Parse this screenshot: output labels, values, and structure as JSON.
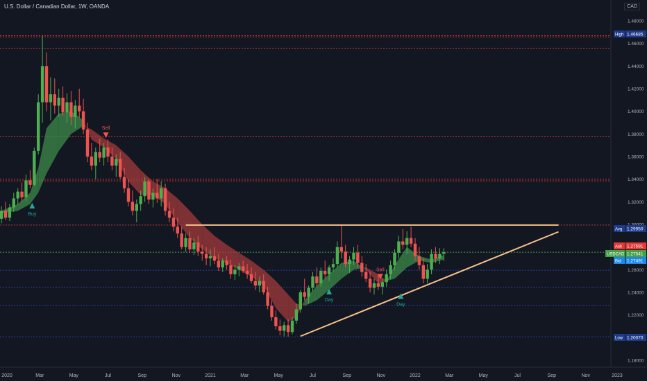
{
  "header": {
    "title": "U.S. Dollar / Canadian Dollar, 1W, OANDA",
    "currency": "CAD"
  },
  "colors": {
    "background": "#131722",
    "up": "#26a69a",
    "up_bright": "#4caf50",
    "down": "#ef5350",
    "cloud_bull": "#3d8b4a",
    "cloud_bear": "#a33b3b",
    "hline_red": "#e53935",
    "hline_blue": "#2c3fb8",
    "trend": "#f7c28a",
    "last_price": "#4caf50"
  },
  "chart_data": {
    "type": "candlestick",
    "title": "U.S. Dollar / Canadian Dollar, 1W, OANDA",
    "y_axis": {
      "range": [
        1.17,
        1.48
      ],
      "ticks": [
        "1.48000",
        "1.46000",
        "1.44000",
        "1.42000",
        "1.40000",
        "1.38000",
        "1.36000",
        "1.34000",
        "1.32000",
        "1.30000",
        "1.28000",
        "1.26000",
        "1.24000",
        "1.22000",
        "1.20000",
        "1.18000"
      ]
    },
    "x_axis": {
      "ticks": [
        "2020",
        "Mar",
        "May",
        "Jul",
        "Sep",
        "Nov",
        "2021",
        "Mar",
        "May",
        "Jul",
        "Sep",
        "Nov",
        "2022",
        "Mar",
        "May",
        "Jul",
        "Sep",
        "Nov",
        "2023"
      ]
    },
    "price_labels": [
      {
        "label": "High",
        "value": "1.46685",
        "bg": "#1e3a8a"
      },
      {
        "label": "Avg",
        "value": "1.29950",
        "bg": "#1e3a8a"
      },
      {
        "label": "Ask",
        "value": "1.27591",
        "bg": "#e53935"
      },
      {
        "label": "USDCAD",
        "value": "1.27541",
        "bg": "#43a047"
      },
      {
        "label": "Bid",
        "value": "1.27491",
        "bg": "#1e88e5"
      },
      {
        "label": "Low",
        "value": "1.20070",
        "bg": "#1e3a8a"
      }
    ],
    "horizontal_lines": [
      {
        "y": 1.4668,
        "color": "red"
      },
      {
        "y": 1.4658,
        "color": "red"
      },
      {
        "y": 1.4555,
        "color": "red"
      },
      {
        "y": 1.3775,
        "color": "red"
      },
      {
        "y": 1.34,
        "color": "red"
      },
      {
        "y": 1.3385,
        "color": "red"
      },
      {
        "y": 1.2995,
        "color": "red"
      },
      {
        "y": 1.2754,
        "color": "green"
      },
      {
        "y": 1.2595,
        "color": "blue"
      },
      {
        "y": 1.2445,
        "color": "blue"
      },
      {
        "y": 1.2285,
        "color": "blue"
      },
      {
        "y": 1.2007,
        "color": "blue"
      }
    ],
    "drawings": {
      "resistance": {
        "from": [
          2020.88,
          1.2995
        ],
        "to": [
          2022.7,
          1.2995
        ]
      },
      "trendline": {
        "from": [
          2021.44,
          1.2012
        ],
        "to": [
          2022.7,
          1.2935
        ]
      }
    },
    "signals": [
      {
        "label": "Buy",
        "type": "buy",
        "x": 2020.13,
        "price": 1.316
      },
      {
        "label": "Sell",
        "type": "sell",
        "x": 2020.49,
        "price": 1.3795
      },
      {
        "label": "Day",
        "type": "buy",
        "x": 2021.58,
        "price": 1.24
      },
      {
        "label": "Sell",
        "type": "sell",
        "x": 2021.83,
        "price": 1.2545
      },
      {
        "label": "Day",
        "type": "buy",
        "x": 2021.93,
        "price": 1.236
      }
    ],
    "candles": [
      [
        2019.9,
        1.305,
        1.312,
        1.298,
        1.302
      ],
      [
        2019.92,
        1.302,
        1.315,
        1.299,
        1.313
      ],
      [
        2019.94,
        1.313,
        1.322,
        1.308,
        1.319
      ],
      [
        2019.96,
        1.319,
        1.322,
        1.302,
        1.305
      ],
      [
        2019.98,
        1.305,
        1.316,
        1.301,
        1.312
      ],
      [
        2020.0,
        1.312,
        1.32,
        1.304,
        1.306
      ],
      [
        2020.02,
        1.306,
        1.318,
        1.303,
        1.315
      ],
      [
        2020.04,
        1.315,
        1.328,
        1.311,
        1.323
      ],
      [
        2020.06,
        1.323,
        1.332,
        1.317,
        1.329
      ],
      [
        2020.08,
        1.329,
        1.337,
        1.32,
        1.324
      ],
      [
        2020.1,
        1.324,
        1.344,
        1.321,
        1.339
      ],
      [
        2020.12,
        1.339,
        1.348,
        1.332,
        1.335
      ],
      [
        2020.14,
        1.335,
        1.368,
        1.334,
        1.365
      ],
      [
        2020.16,
        1.365,
        1.415,
        1.362,
        1.408
      ],
      [
        2020.18,
        1.408,
        1.4668,
        1.39,
        1.44
      ],
      [
        2020.2,
        1.44,
        1.452,
        1.4,
        1.408
      ],
      [
        2020.22,
        1.408,
        1.43,
        1.392,
        1.415
      ],
      [
        2020.24,
        1.415,
        1.429,
        1.398,
        1.405
      ],
      [
        2020.26,
        1.405,
        1.42,
        1.395,
        1.412
      ],
      [
        2020.28,
        1.412,
        1.422,
        1.396,
        1.399
      ],
      [
        2020.3,
        1.399,
        1.416,
        1.39,
        1.408
      ],
      [
        2020.32,
        1.408,
        1.418,
        1.388,
        1.395
      ],
      [
        2020.34,
        1.395,
        1.41,
        1.385,
        1.405
      ],
      [
        2020.36,
        1.405,
        1.42,
        1.394,
        1.4
      ],
      [
        2020.38,
        1.4,
        1.411,
        1.38,
        1.384
      ],
      [
        2020.4,
        1.384,
        1.39,
        1.355,
        1.36
      ],
      [
        2020.42,
        1.36,
        1.372,
        1.348,
        1.352
      ],
      [
        2020.44,
        1.352,
        1.368,
        1.34,
        1.364
      ],
      [
        2020.46,
        1.364,
        1.376,
        1.355,
        1.359
      ],
      [
        2020.48,
        1.359,
        1.372,
        1.352,
        1.368
      ],
      [
        2020.5,
        1.368,
        1.375,
        1.355,
        1.36
      ],
      [
        2020.52,
        1.36,
        1.368,
        1.348,
        1.352
      ],
      [
        2020.54,
        1.352,
        1.362,
        1.342,
        1.358
      ],
      [
        2020.56,
        1.358,
        1.364,
        1.34,
        1.342
      ],
      [
        2020.58,
        1.342,
        1.35,
        1.328,
        1.332
      ],
      [
        2020.6,
        1.332,
        1.34,
        1.316,
        1.32
      ],
      [
        2020.62,
        1.32,
        1.33,
        1.308,
        1.312
      ],
      [
        2020.64,
        1.312,
        1.322,
        1.302,
        1.318
      ],
      [
        2020.66,
        1.318,
        1.33,
        1.312,
        1.325
      ],
      [
        2020.68,
        1.325,
        1.342,
        1.32,
        1.338
      ],
      [
        2020.7,
        1.338,
        1.34,
        1.318,
        1.322
      ],
      [
        2020.72,
        1.322,
        1.332,
        1.315,
        1.328
      ],
      [
        2020.74,
        1.328,
        1.34,
        1.319,
        1.323
      ],
      [
        2020.76,
        1.323,
        1.338,
        1.316,
        1.332
      ],
      [
        2020.78,
        1.332,
        1.336,
        1.308,
        1.312
      ],
      [
        2020.8,
        1.312,
        1.32,
        1.302,
        1.306
      ],
      [
        2020.82,
        1.306,
        1.314,
        1.294,
        1.298
      ],
      [
        2020.84,
        1.298,
        1.306,
        1.288,
        1.292
      ],
      [
        2020.86,
        1.292,
        1.298,
        1.278,
        1.28
      ],
      [
        2020.88,
        1.28,
        1.292,
        1.276,
        1.288
      ],
      [
        2020.9,
        1.288,
        1.294,
        1.275,
        1.278
      ],
      [
        2020.92,
        1.278,
        1.288,
        1.273,
        1.284
      ],
      [
        2020.94,
        1.284,
        1.29,
        1.272,
        1.276
      ],
      [
        2020.96,
        1.276,
        1.282,
        1.268,
        1.274
      ],
      [
        2020.98,
        1.274,
        1.28,
        1.264,
        1.27
      ],
      [
        2021.0,
        1.27,
        1.278,
        1.263,
        1.272
      ],
      [
        2021.02,
        1.272,
        1.28,
        1.265,
        1.268
      ],
      [
        2021.04,
        1.268,
        1.274,
        1.259,
        1.262
      ],
      [
        2021.06,
        1.262,
        1.27,
        1.258,
        1.268
      ],
      [
        2021.08,
        1.268,
        1.272,
        1.26,
        1.264
      ],
      [
        2021.1,
        1.264,
        1.269,
        1.252,
        1.256
      ],
      [
        2021.12,
        1.256,
        1.264,
        1.251,
        1.26
      ],
      [
        2021.14,
        1.26,
        1.266,
        1.254,
        1.263
      ],
      [
        2021.16,
        1.263,
        1.268,
        1.257,
        1.259
      ],
      [
        2021.18,
        1.259,
        1.265,
        1.252,
        1.256
      ],
      [
        2021.2,
        1.256,
        1.262,
        1.248,
        1.25
      ],
      [
        2021.22,
        1.25,
        1.258,
        1.242,
        1.246
      ],
      [
        2021.24,
        1.246,
        1.254,
        1.24,
        1.25
      ],
      [
        2021.26,
        1.25,
        1.256,
        1.238,
        1.24
      ],
      [
        2021.28,
        1.24,
        1.245,
        1.225,
        1.228
      ],
      [
        2021.3,
        1.228,
        1.233,
        1.215,
        1.218
      ],
      [
        2021.32,
        1.218,
        1.224,
        1.207,
        1.21
      ],
      [
        2021.34,
        1.21,
        1.216,
        1.202,
        1.206
      ],
      [
        2021.36,
        1.206,
        1.214,
        1.201,
        1.211
      ],
      [
        2021.38,
        1.211,
        1.216,
        1.2007,
        1.205
      ],
      [
        2021.4,
        1.205,
        1.218,
        1.203,
        1.215
      ],
      [
        2021.42,
        1.215,
        1.23,
        1.212,
        1.225
      ],
      [
        2021.44,
        1.225,
        1.242,
        1.222,
        1.24
      ],
      [
        2021.46,
        1.24,
        1.252,
        1.233,
        1.236
      ],
      [
        2021.48,
        1.236,
        1.246,
        1.23,
        1.244
      ],
      [
        2021.5,
        1.244,
        1.258,
        1.241,
        1.254
      ],
      [
        2021.52,
        1.254,
        1.262,
        1.245,
        1.248
      ],
      [
        2021.54,
        1.248,
        1.262,
        1.245,
        1.259
      ],
      [
        2021.56,
        1.259,
        1.268,
        1.252,
        1.256
      ],
      [
        2021.58,
        1.256,
        1.264,
        1.25,
        1.262
      ],
      [
        2021.6,
        1.262,
        1.27,
        1.258,
        1.265
      ],
      [
        2021.62,
        1.265,
        1.285,
        1.262,
        1.28
      ],
      [
        2021.64,
        1.28,
        1.2995,
        1.27,
        1.276
      ],
      [
        2021.66,
        1.276,
        1.282,
        1.262,
        1.265
      ],
      [
        2021.68,
        1.265,
        1.272,
        1.257,
        1.269
      ],
      [
        2021.7,
        1.269,
        1.28,
        1.264,
        1.275
      ],
      [
        2021.72,
        1.275,
        1.282,
        1.262,
        1.266
      ],
      [
        2021.74,
        1.266,
        1.272,
        1.254,
        1.258
      ],
      [
        2021.76,
        1.258,
        1.265,
        1.249,
        1.252
      ],
      [
        2021.78,
        1.252,
        1.258,
        1.24,
        1.244
      ],
      [
        2021.8,
        1.244,
        1.252,
        1.238,
        1.248
      ],
      [
        2021.82,
        1.248,
        1.256,
        1.242,
        1.245
      ],
      [
        2021.84,
        1.245,
        1.252,
        1.238,
        1.249
      ],
      [
        2021.86,
        1.249,
        1.26,
        1.245,
        1.256
      ],
      [
        2021.88,
        1.256,
        1.268,
        1.252,
        1.264
      ],
      [
        2021.9,
        1.264,
        1.278,
        1.26,
        1.275
      ],
      [
        2021.92,
        1.275,
        1.29,
        1.27,
        1.285
      ],
      [
        2021.94,
        1.285,
        1.296,
        1.278,
        1.282
      ],
      [
        2021.96,
        1.282,
        1.294,
        1.274,
        1.288
      ],
      [
        2021.98,
        1.288,
        1.298,
        1.28,
        1.283
      ],
      [
        2022.0,
        1.283,
        1.288,
        1.268,
        1.272
      ],
      [
        2022.02,
        1.272,
        1.28,
        1.26,
        1.264
      ],
      [
        2022.04,
        1.264,
        1.27,
        1.248,
        1.252
      ],
      [
        2022.06,
        1.252,
        1.265,
        1.248,
        1.26
      ],
      [
        2022.08,
        1.26,
        1.278,
        1.256,
        1.274
      ],
      [
        2022.1,
        1.274,
        1.28,
        1.266,
        1.27
      ],
      [
        2022.12,
        1.27,
        1.279,
        1.265,
        1.274
      ],
      [
        2022.14,
        1.274,
        1.279,
        1.268,
        1.2754
      ]
    ],
    "cloud": [
      [
        2019.9,
        1.315,
        1.308
      ],
      [
        2019.98,
        1.312,
        1.31
      ],
      [
        2020.06,
        1.318,
        1.312
      ],
      [
        2020.12,
        1.328,
        1.318
      ],
      [
        2020.16,
        1.35,
        1.328
      ],
      [
        2020.2,
        1.385,
        1.345
      ],
      [
        2020.26,
        1.398,
        1.365
      ],
      [
        2020.32,
        1.4,
        1.38
      ],
      [
        2020.38,
        1.392,
        1.387
      ],
      [
        2020.42,
        1.375,
        1.384
      ],
      [
        2020.48,
        1.368,
        1.376
      ],
      [
        2020.54,
        1.358,
        1.37
      ],
      [
        2020.6,
        1.338,
        1.36
      ],
      [
        2020.66,
        1.326,
        1.348
      ],
      [
        2020.72,
        1.326,
        1.338
      ],
      [
        2020.78,
        1.318,
        1.332
      ],
      [
        2020.84,
        1.302,
        1.323
      ],
      [
        2020.9,
        1.288,
        1.312
      ],
      [
        2020.96,
        1.278,
        1.3
      ],
      [
        2021.02,
        1.27,
        1.29
      ],
      [
        2021.08,
        1.266,
        1.282
      ],
      [
        2021.14,
        1.26,
        1.275
      ],
      [
        2021.2,
        1.254,
        1.268
      ],
      [
        2021.26,
        1.246,
        1.26
      ],
      [
        2021.32,
        1.226,
        1.25
      ],
      [
        2021.38,
        1.214,
        1.238
      ],
      [
        2021.42,
        1.218,
        1.23
      ],
      [
        2021.46,
        1.233,
        1.228
      ],
      [
        2021.52,
        1.246,
        1.233
      ],
      [
        2021.58,
        1.256,
        1.242
      ],
      [
        2021.64,
        1.266,
        1.252
      ],
      [
        2021.7,
        1.268,
        1.26
      ],
      [
        2021.76,
        1.26,
        1.262
      ],
      [
        2021.82,
        1.248,
        1.256
      ],
      [
        2021.86,
        1.25,
        1.25
      ],
      [
        2021.9,
        1.264,
        1.252
      ],
      [
        2021.96,
        1.28,
        1.262
      ],
      [
        2022.02,
        1.272,
        1.268
      ],
      [
        2022.08,
        1.269,
        1.266
      ],
      [
        2022.14,
        1.273,
        1.269
      ]
    ]
  }
}
